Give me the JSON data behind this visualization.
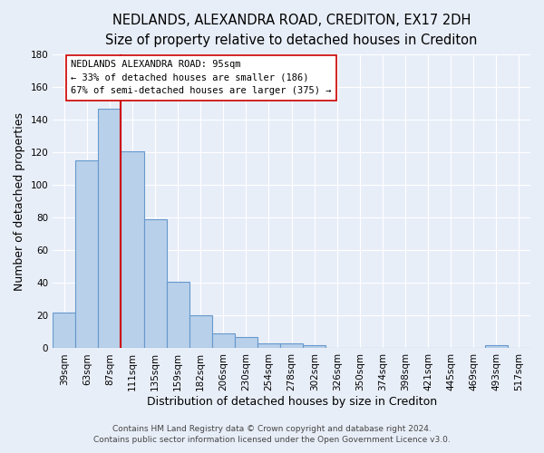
{
  "title": "NEDLANDS, ALEXANDRA ROAD, CREDITON, EX17 2DH",
  "subtitle": "Size of property relative to detached houses in Crediton",
  "xlabel": "Distribution of detached houses by size in Crediton",
  "ylabel": "Number of detached properties",
  "bar_labels": [
    "39sqm",
    "63sqm",
    "87sqm",
    "111sqm",
    "135sqm",
    "159sqm",
    "182sqm",
    "206sqm",
    "230sqm",
    "254sqm",
    "278sqm",
    "302sqm",
    "326sqm",
    "350sqm",
    "374sqm",
    "398sqm",
    "421sqm",
    "445sqm",
    "469sqm",
    "493sqm",
    "517sqm"
  ],
  "bar_values": [
    22,
    115,
    147,
    121,
    79,
    41,
    20,
    9,
    7,
    3,
    3,
    2,
    0,
    0,
    0,
    0,
    0,
    0,
    0,
    2,
    0
  ],
  "bar_color": "#b8d0ea",
  "bar_edgecolor": "#6699cc",
  "ylim": [
    0,
    180
  ],
  "yticks": [
    0,
    20,
    40,
    60,
    80,
    100,
    120,
    140,
    160,
    180
  ],
  "vline_x_index": 2.5,
  "vline_color": "#cc0000",
  "annot_line1": "NEDLANDS ALEXANDRA ROAD: 95sqm",
  "annot_line2": "← 33% of detached houses are smaller (186)",
  "annot_line3": "67% of semi-detached houses are larger (375) →",
  "footer_line1": "Contains HM Land Registry data © Crown copyright and database right 2024.",
  "footer_line2": "Contains public sector information licensed under the Open Government Licence v3.0.",
  "background_color": "#e8eef8",
  "plot_background_color": "#e8eef8",
  "grid_color": "#ffffff",
  "title_fontsize": 10.5,
  "subtitle_fontsize": 9.5,
  "axis_label_fontsize": 9,
  "tick_fontsize": 7.5,
  "footer_fontsize": 6.5
}
